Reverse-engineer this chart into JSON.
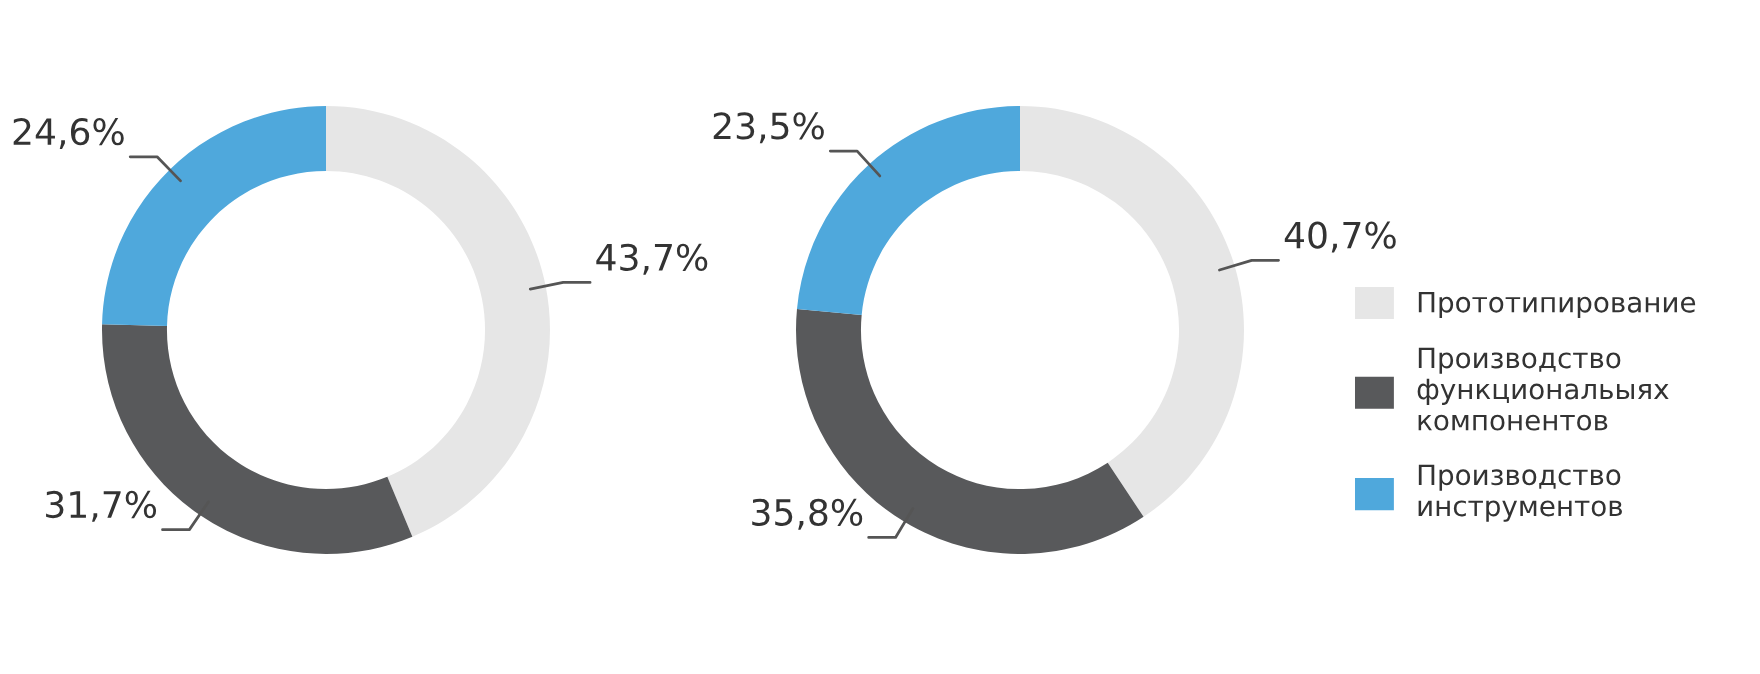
{
  "chart_data": [
    {
      "type": "donut",
      "categories": [
        "Прототипирование",
        "Производство\nфункциональыях\nкомпонентов",
        "Производство\nинструментов"
      ],
      "values": [
        43.7,
        31.7,
        24.6
      ],
      "colors": [
        "#e6e6e6",
        "#58595b",
        "#4fa8dc"
      ],
      "value_labels": [
        "43,7%",
        "31,7%",
        "24,6%"
      ],
      "legend": "right"
    },
    {
      "type": "donut",
      "categories": [
        null,
        null,
        null
      ],
      "values": [
        40.7,
        35.8,
        23.5
      ],
      "colors": [
        "#e6e6e6",
        "#58595b",
        "#4fa8dc"
      ],
      "value_labels": [
        "40,7%",
        "35,8%",
        "23,5%"
      ],
      "legend": false
    }
  ]
}
